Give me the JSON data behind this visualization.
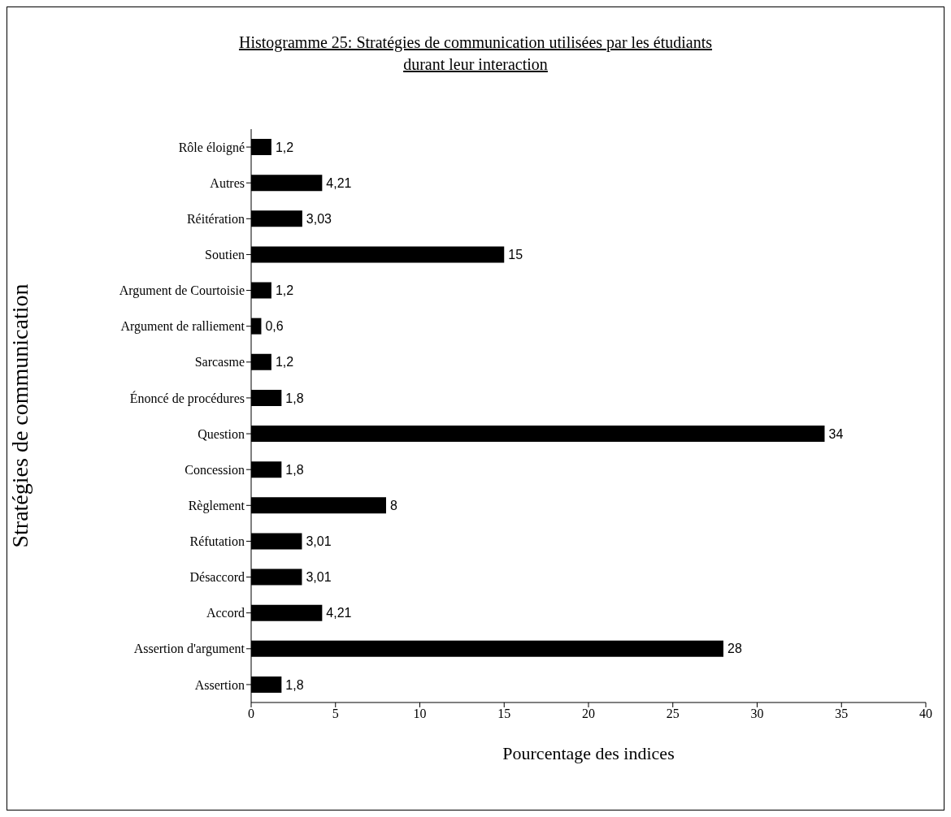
{
  "chart_data": {
    "type": "bar",
    "orientation": "horizontal",
    "title": "Histogramme 25: Stratégies de communication utilisées par les étudiants durant leur interaction",
    "xlabel": "Pourcentage des indices",
    "ylabel": "Stratégies de communication",
    "categories": [
      "Rôle éloigné",
      "Autres",
      "Réitération",
      "Soutien",
      "Argument de Courtoisie",
      "Argument de ralliement",
      "Sarcasme",
      "Énoncé de procédures",
      "Question",
      "Concession",
      "Règlement",
      "Réfutation",
      "Désaccord",
      "Accord",
      "Assertion d'argument",
      "Assertion"
    ],
    "values": [
      1.2,
      4.21,
      3.03,
      15,
      1.2,
      0.6,
      1.2,
      1.8,
      34,
      1.8,
      8,
      3.01,
      3.01,
      4.21,
      28,
      1.8
    ],
    "value_labels": [
      "1,2",
      "4,21",
      "3,03",
      "15",
      "1,2",
      "0,6",
      "1,2",
      "1,8",
      "34",
      "1,8",
      "8",
      "3,01",
      "3,01",
      "4,21",
      "28",
      "1,8"
    ],
    "color": "#000000",
    "xlim": [
      0,
      40
    ],
    "xticks": [
      0,
      5,
      10,
      15,
      20,
      25,
      30,
      35,
      40
    ],
    "grid": false,
    "legend": false
  }
}
